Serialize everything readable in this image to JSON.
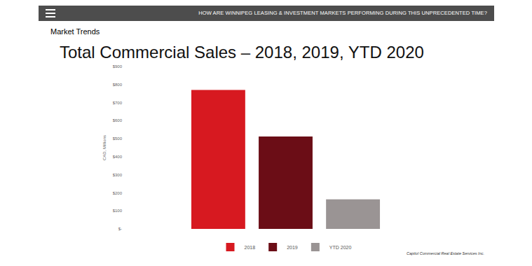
{
  "header": {
    "text": "HOW ARE WINNIPEG LEASING & INVESTMENT MARKETS PERFORMING DURING THIS UNPRECEDENTED TIME?"
  },
  "section": "Market Trends",
  "footer": "Capitol Commercial Real Estate Services Inc.",
  "chart_data": {
    "type": "bar",
    "title": "Total Commercial Sales – 2018, 2019, YTD 2020",
    "y_label": "CAD, Millions",
    "categories": [
      null
    ],
    "series": [
      {
        "name": "2018",
        "color": "#d71920",
        "values": [
          770
        ]
      },
      {
        "name": "2019",
        "color": "#6b0d16",
        "values": [
          512
        ]
      },
      {
        "name": "YTD 2020",
        "color": "#9a9494",
        "values": [
          164
        ]
      }
    ],
    "ylim": [
      0,
      900
    ],
    "yticks": [
      {
        "value": 0,
        "label": "$-"
      },
      {
        "value": 100,
        "label": "$100"
      },
      {
        "value": 200,
        "label": "$200"
      },
      {
        "value": 300,
        "label": "$300"
      },
      {
        "value": 400,
        "label": "$400"
      },
      {
        "value": 500,
        "label": "$500"
      },
      {
        "value": 600,
        "label": "$600"
      },
      {
        "value": 700,
        "label": "$700"
      },
      {
        "value": 800,
        "label": "$800"
      },
      {
        "value": 900,
        "label": "$900"
      }
    ],
    "grid": false,
    "legend": "bottom",
    "tick_labels": "y"
  }
}
